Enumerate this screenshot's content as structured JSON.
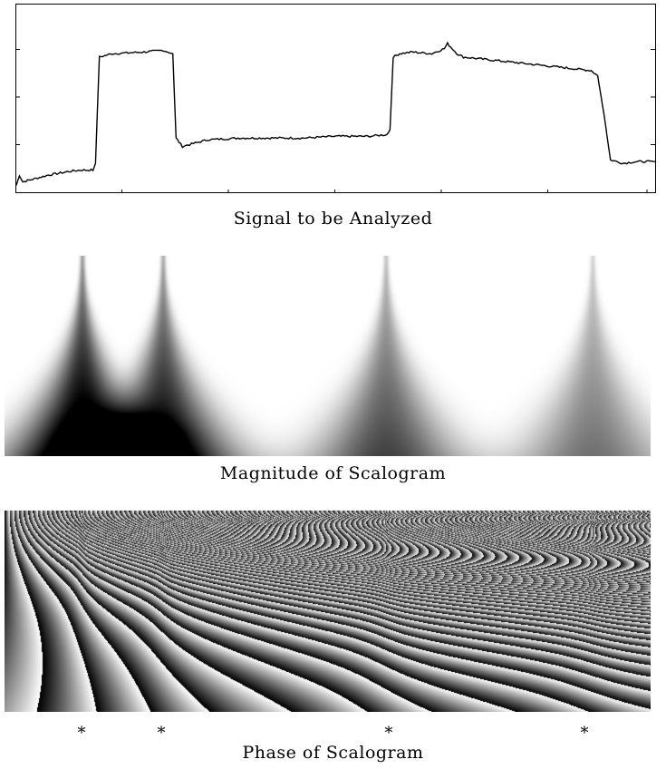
{
  "figure": {
    "signal_caption": "Signal to be Analyzed",
    "magnitude_caption": "Magnitude of Scalogram",
    "phase_caption": "Phase of Scalogram",
    "singularity_marker": "*",
    "singularity_markers": [
      "*",
      "*",
      "*",
      "*"
    ]
  },
  "chart_data": [
    {
      "type": "line",
      "title": "Signal to be Analyzed",
      "xlabel": "",
      "ylabel": "",
      "grid": false,
      "x_ticks": 6,
      "y_ticks": 3,
      "series": [
        {
          "x": [
            0,
            0.005,
            0.01,
            0.02,
            0.05,
            0.08,
            0.1,
            0.12,
            0.124,
            0.13,
            0.15,
            0.2,
            0.23,
            0.245,
            0.25,
            0.26,
            0.28,
            0.3,
            0.35,
            0.4,
            0.45,
            0.5,
            0.55,
            0.58,
            0.585,
            0.59,
            0.6,
            0.62,
            0.65,
            0.67,
            0.675,
            0.68,
            0.69,
            0.7,
            0.75,
            0.8,
            0.85,
            0.9,
            0.91,
            0.92,
            0.93,
            0.95,
            0.97,
            1.0
          ],
          "y": [
            0.02,
            0.08,
            0.04,
            0.05,
            0.08,
            0.1,
            0.11,
            0.11,
            0.15,
            0.78,
            0.8,
            0.81,
            0.82,
            0.8,
            0.3,
            0.25,
            0.27,
            0.29,
            0.3,
            0.3,
            0.3,
            0.31,
            0.31,
            0.32,
            0.35,
            0.78,
            0.8,
            0.81,
            0.8,
            0.83,
            0.86,
            0.84,
            0.8,
            0.78,
            0.76,
            0.74,
            0.72,
            0.7,
            0.67,
            0.44,
            0.17,
            0.15,
            0.16,
            0.16
          ]
        }
      ]
    },
    {
      "type": "heatmap",
      "title": "Magnitude of Scalogram",
      "xlabel": "",
      "ylabel": "",
      "singularities_x": [
        0.12,
        0.245,
        0.59,
        0.91
      ],
      "peak_strengths": [
        1.0,
        0.85,
        0.6,
        0.45
      ]
    },
    {
      "type": "heatmap",
      "title": "Phase of Scalogram",
      "xlabel": "",
      "ylabel": "",
      "singularities_x": [
        0.12,
        0.245,
        0.59,
        0.91
      ]
    }
  ]
}
